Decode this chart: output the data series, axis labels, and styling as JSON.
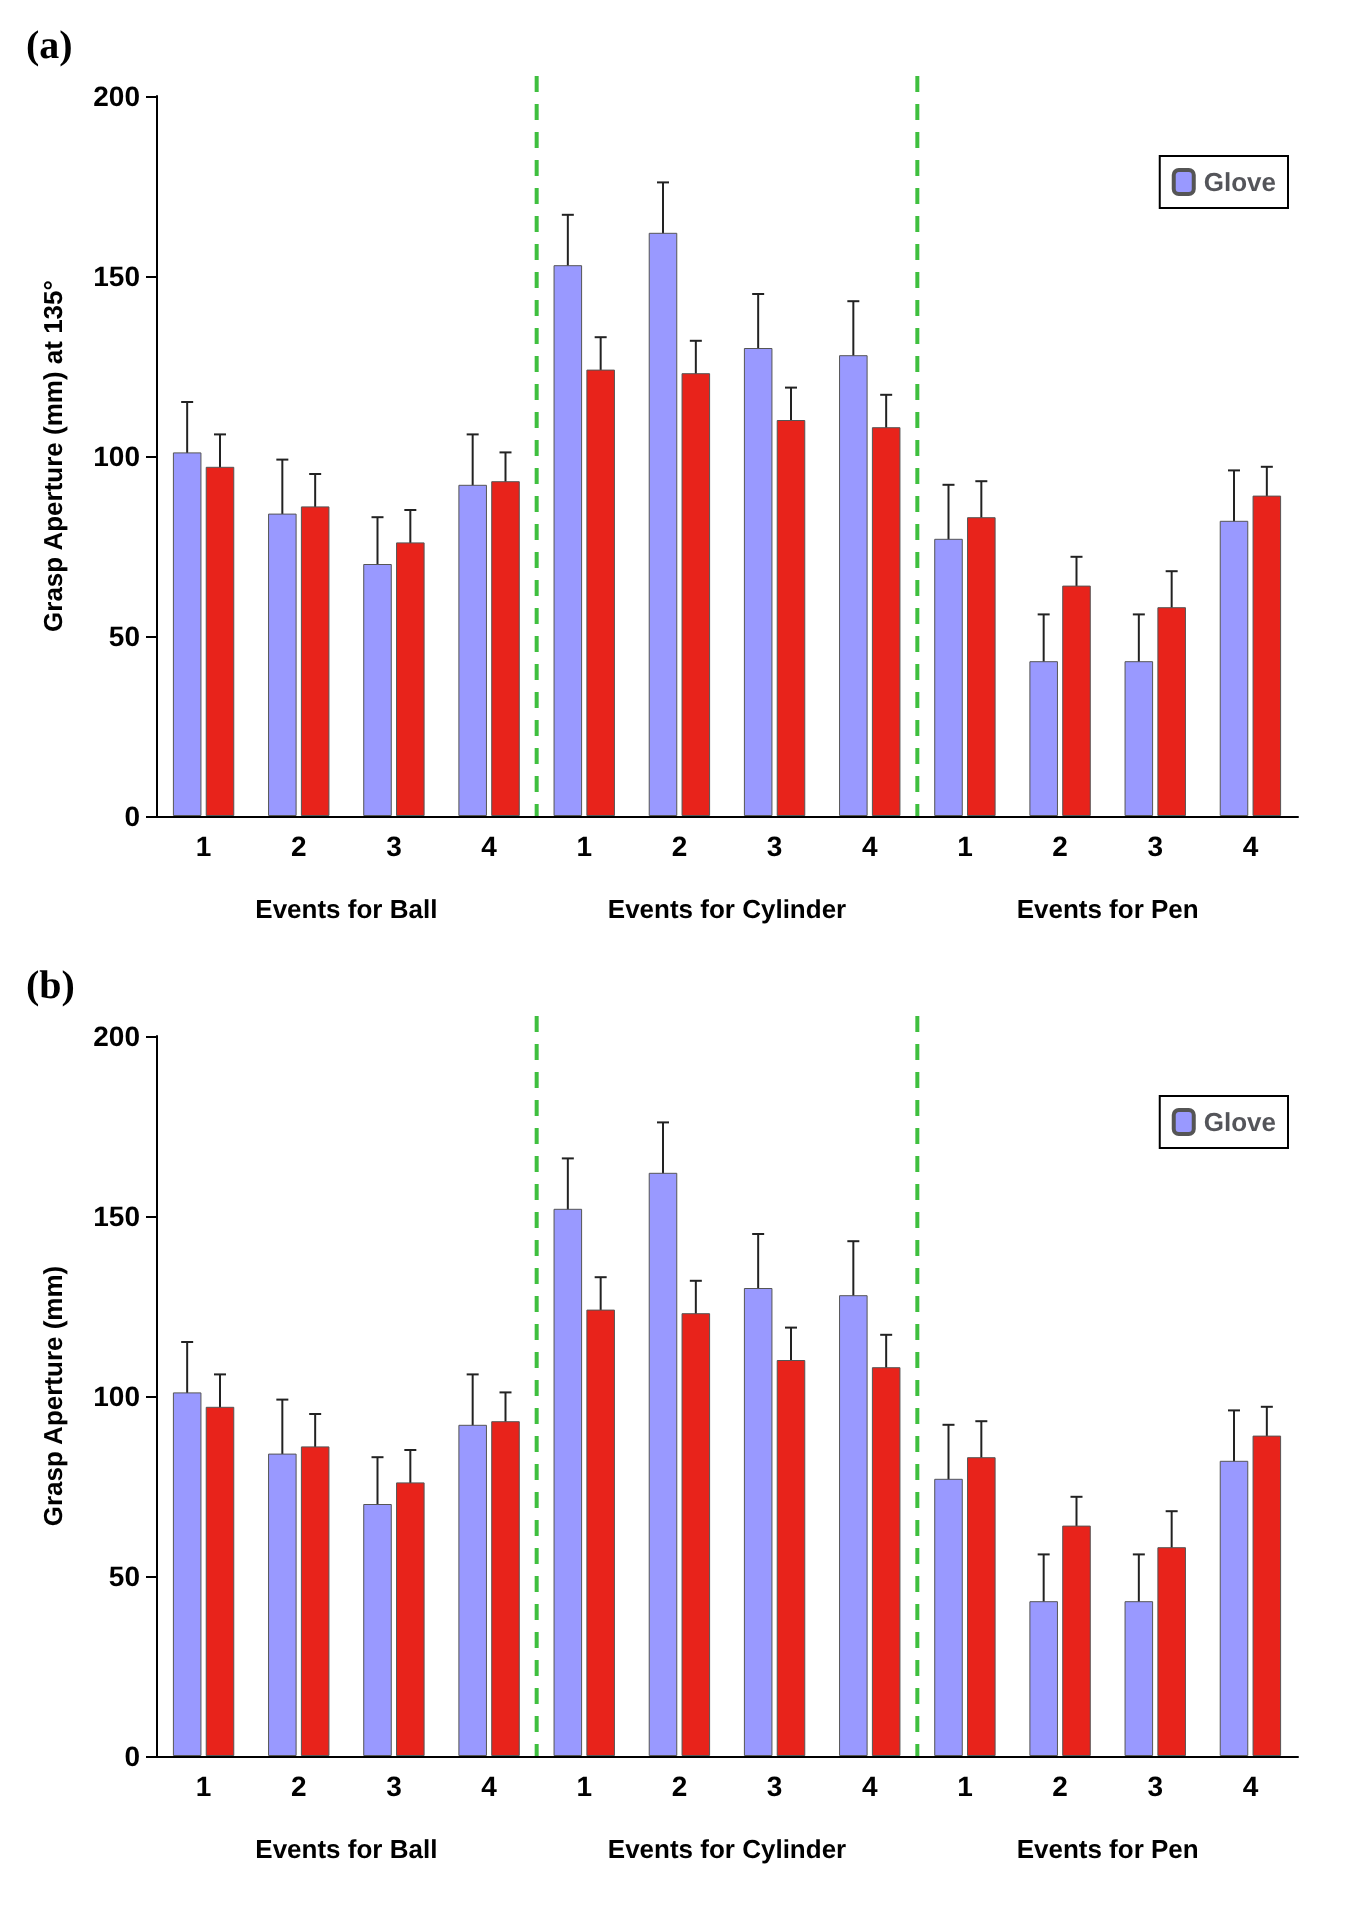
{
  "chart_data": [
    {
      "type": "bar",
      "title": "(a)",
      "ylabel": "Grasp Aperture (mm) at 135°",
      "categories": [
        "1",
        "2",
        "3",
        "4",
        "1",
        "2",
        "3",
        "4",
        "1",
        "2",
        "3",
        "4"
      ],
      "annotations": [
        "Events for Ball",
        "Events for Cylinder",
        "Events for Pen"
      ],
      "series": [
        {
          "name": "Glove",
          "color": "#9999ff",
          "values": [
            101,
            84,
            70,
            92,
            153,
            162,
            130,
            128,
            77,
            43,
            43,
            82
          ],
          "errors": [
            14,
            15,
            13,
            14,
            14,
            14,
            15,
            15,
            15,
            13,
            13,
            14
          ]
        },
        {
          "color": "#e8231b",
          "values": [
            97,
            86,
            76,
            93,
            124,
            123,
            110,
            108,
            83,
            64,
            58,
            89
          ],
          "errors": [
            9,
            9,
            9,
            8,
            9,
            9,
            9,
            9,
            10,
            8,
            10,
            8
          ]
        }
      ],
      "ylim": [
        0,
        200
      ],
      "yticks": [
        0,
        50,
        100,
        150,
        200
      ],
      "grid": false,
      "legend": "top right"
    },
    {
      "type": "bar",
      "title": "(b)",
      "ylabel": "Grasp Aperture (mm)",
      "categories": [
        "1",
        "2",
        "3",
        "4",
        "1",
        "2",
        "3",
        "4",
        "1",
        "2",
        "3",
        "4"
      ],
      "annotations": [
        "Events for Ball",
        "Events for Cylinder",
        "Events for Pen"
      ],
      "series": [
        {
          "name": "Glove",
          "color": "#9999ff",
          "values": [
            101,
            84,
            70,
            92,
            152,
            162,
            130,
            128,
            77,
            43,
            43,
            82
          ],
          "errors": [
            14,
            15,
            13,
            14,
            14,
            14,
            15,
            15,
            15,
            13,
            13,
            14
          ]
        },
        {
          "color": "#e8231b",
          "values": [
            97,
            86,
            76,
            93,
            124,
            123,
            110,
            108,
            83,
            64,
            58,
            89
          ],
          "errors": [
            9,
            9,
            9,
            8,
            9,
            9,
            9,
            9,
            10,
            8,
            10,
            8
          ]
        }
      ],
      "ylim": [
        0,
        200
      ],
      "yticks": [
        0,
        50,
        100,
        150,
        200
      ],
      "grid": false,
      "legend": "top right"
    }
  ]
}
